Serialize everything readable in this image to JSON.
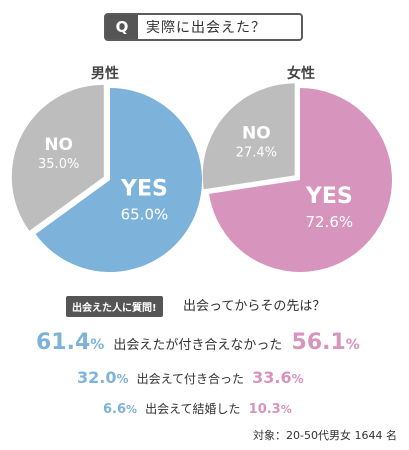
{
  "question": {
    "mark": "Q",
    "text": "実際に出会えた？"
  },
  "chart_data": [
    {
      "type": "pie",
      "title": "男性",
      "slices": [
        {
          "label": "YES",
          "value": 65.0,
          "display": "65.0%",
          "color": "#7db3da"
        },
        {
          "label": "NO",
          "value": 35.0,
          "display": "35.0%",
          "color": "#bdbdbd"
        }
      ]
    },
    {
      "type": "pie",
      "title": "女性",
      "slices": [
        {
          "label": "YES",
          "value": 72.6,
          "display": "72.6%",
          "color": "#d794bd"
        },
        {
          "label": "NO",
          "value": 27.4,
          "display": "27.4%",
          "color": "#bdbdbd"
        }
      ]
    }
  ],
  "followup": {
    "tag": "出会えた人に質問!",
    "question": "出会ってからその先は？",
    "rows": [
      {
        "male": "61.4",
        "label": "出会えたが付き合えなかった",
        "female": "56.1"
      },
      {
        "male": "32.0",
        "label": "出会えて付き合った",
        "female": "33.6"
      },
      {
        "male": "6.6",
        "label": "出会えて結婚した",
        "female": "10.3"
      }
    ],
    "percent": "%"
  },
  "footer": "対象：20-50代男女 1644 名",
  "colors": {
    "male": "#7db3da",
    "female": "#d794bd",
    "no": "#bdbdbd"
  }
}
